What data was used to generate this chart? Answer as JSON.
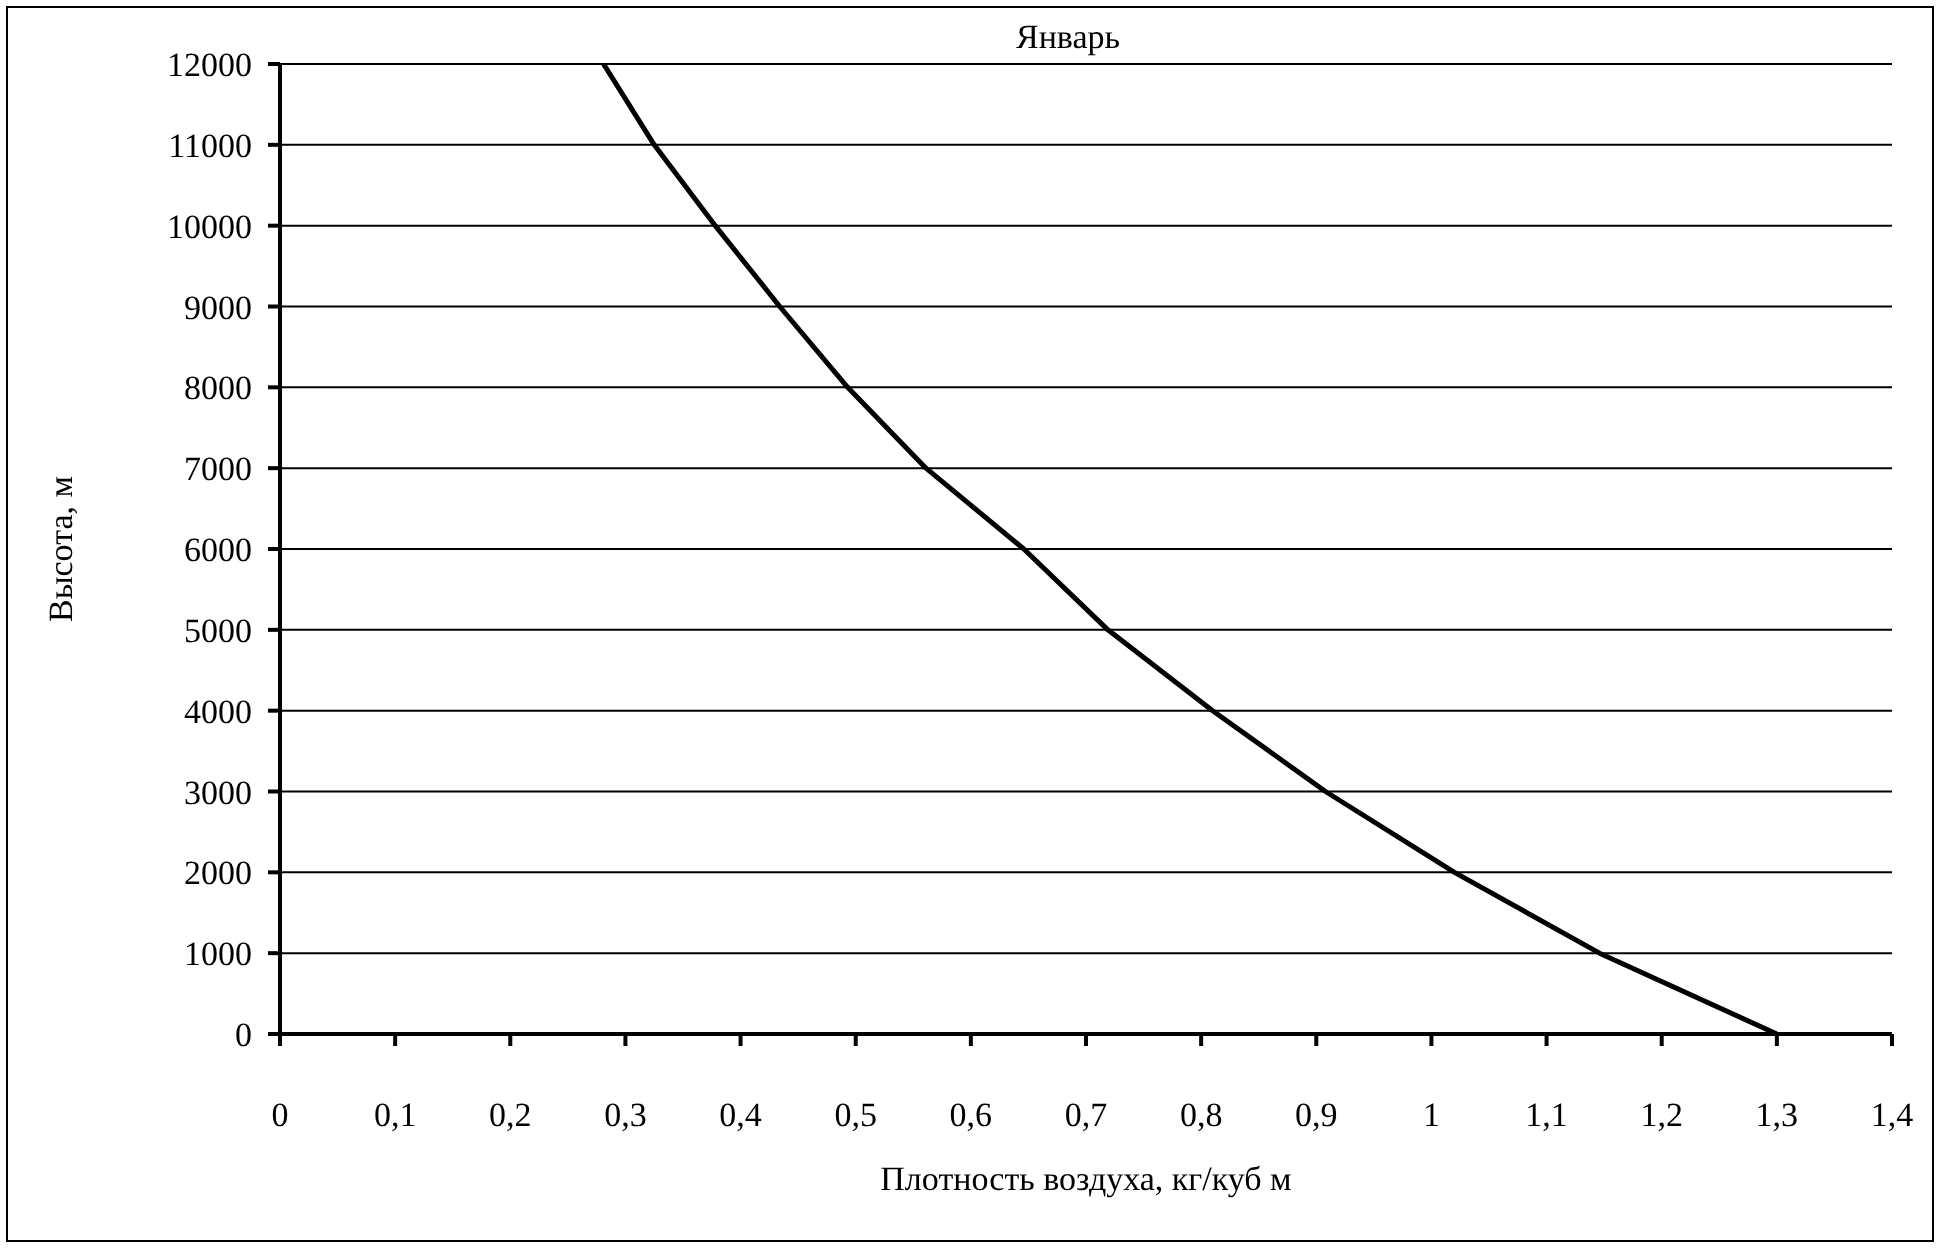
{
  "chart_data": {
    "type": "line",
    "xlabel": "Плотность воздуха, кг/куб м",
    "ylabel": "Высота, м",
    "annotations": [
      "Январь"
    ],
    "x": [
      1.3,
      1.146,
      1.02,
      0.908,
      0.81,
      0.719,
      0.646,
      0.561,
      0.493,
      0.434,
      0.378,
      0.325,
      0.281
    ],
    "series": [
      {
        "color": "#000000",
        "values": [
          0,
          1000,
          2000,
          3000,
          4000,
          5000,
          6000,
          7000,
          8000,
          9000,
          10000,
          11000,
          12000
        ]
      }
    ],
    "xlim": [
      0,
      1.4
    ],
    "xticks": [
      0,
      {
        "value": 0.1,
        "label": "0,1"
      },
      {
        "value": 0.2,
        "label": "0,2"
      },
      {
        "value": 0.3,
        "label": "0,3"
      },
      {
        "value": 0.4,
        "label": "0,4"
      },
      {
        "value": 0.5,
        "label": "0,5"
      },
      {
        "value": 0.6,
        "label": "0,6"
      },
      {
        "value": 0.7,
        "label": "0,7"
      },
      {
        "value": 0.8,
        "label": "0,8"
      },
      {
        "value": 0.9,
        "label": "0,9"
      },
      1,
      {
        "value": 1.1,
        "label": "1,1"
      },
      {
        "value": 1.2,
        "label": "1,2"
      },
      {
        "value": 1.3,
        "label": "1,3"
      },
      {
        "value": 1.4,
        "label": "1,4"
      }
    ],
    "ylim": [
      0,
      12000
    ],
    "yticks": [
      0,
      1000,
      2000,
      3000,
      4000,
      5000,
      6000,
      7000,
      8000,
      9000,
      10000,
      11000,
      12000
    ],
    "grid": "y",
    "marker": "none",
    "line_style": "solid"
  }
}
